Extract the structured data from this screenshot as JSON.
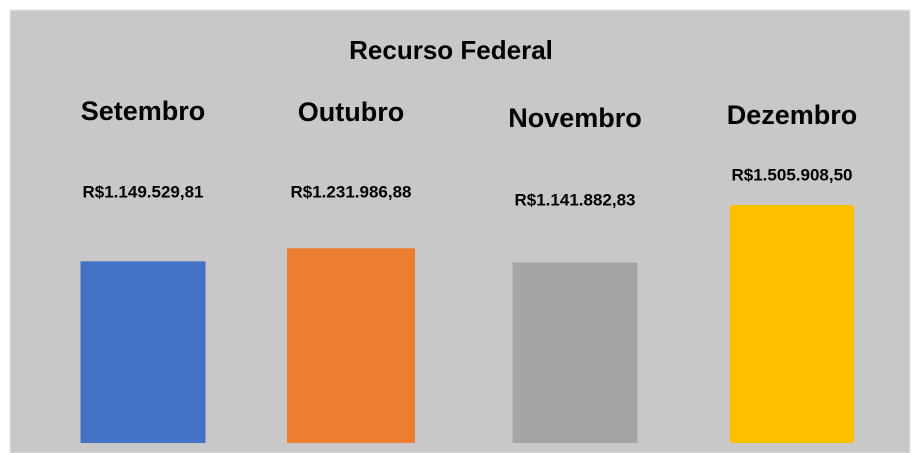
{
  "chart_data": {
    "type": "bar",
    "title": "Recurso Federal",
    "categories": [
      "Setembro",
      "Outubro",
      "Novembro",
      "Dezembro"
    ],
    "values": [
      1149529.81,
      1231986.88,
      1141882.83,
      1505908.5
    ],
    "value_labels": [
      "R$1.149.529,81",
      "R$1.231.986,88",
      "R$1.141.882,83",
      "R$1.505.908,50"
    ],
    "colors": [
      "#4472c4",
      "#ed7d31",
      "#a5a5a5",
      "#ffc000"
    ]
  }
}
